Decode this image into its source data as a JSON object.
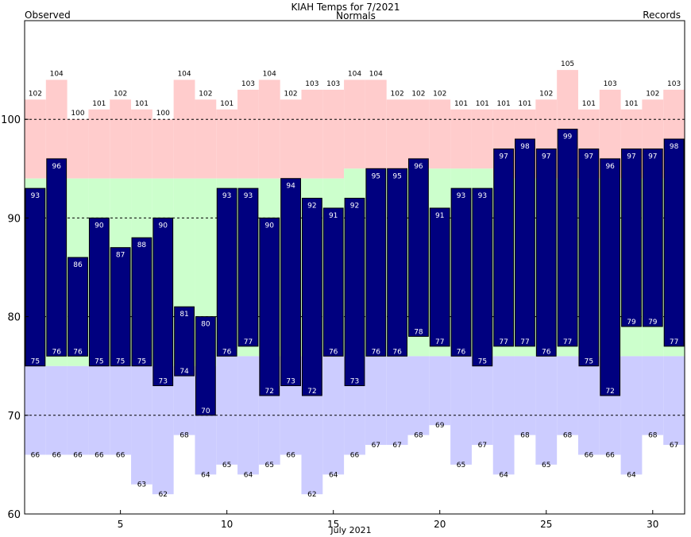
{
  "chart_data": {
    "type": "bar",
    "title": "KIAH Temps for 7/2021",
    "legend": [
      {
        "name": "Observed",
        "color": "#00007f"
      },
      {
        "name": "Normals",
        "color": "#007f00"
      },
      {
        "name": "Records",
        "color": "#bf7fbf"
      }
    ],
    "xlabel": "July 2021",
    "ylabel": "",
    "xlim": [
      0.5,
      31.5
    ],
    "ylim": [
      60,
      110
    ],
    "x_ticks": [
      5,
      10,
      15,
      20,
      25,
      30
    ],
    "y_ticks": [
      60,
      70,
      80,
      90,
      100
    ],
    "dashed_gridlines": [
      70,
      80,
      90,
      100
    ],
    "days": [
      1,
      2,
      3,
      4,
      5,
      6,
      7,
      8,
      9,
      10,
      11,
      12,
      13,
      14,
      15,
      16,
      17,
      18,
      19,
      20,
      21,
      22,
      23,
      24,
      25,
      26,
      27,
      28,
      29,
      30,
      31
    ],
    "series": [
      {
        "name": "Observed",
        "high": [
          93,
          96,
          86,
          90,
          87,
          88,
          90,
          81,
          80,
          93,
          93,
          90,
          94,
          92,
          91,
          92,
          95,
          95,
          96,
          91,
          93,
          93,
          97,
          98,
          97,
          99,
          97,
          96,
          97,
          97,
          98
        ],
        "low": [
          75,
          76,
          76,
          75,
          75,
          75,
          73,
          74,
          70,
          76,
          77,
          72,
          73,
          72,
          76,
          73,
          76,
          76,
          78,
          77,
          76,
          75,
          77,
          77,
          76,
          77,
          75,
          72,
          79,
          79,
          77
        ]
      },
      {
        "name": "Normals",
        "high": [
          94,
          94,
          94,
          94,
          94,
          94,
          94,
          94,
          94,
          94,
          94,
          94,
          94,
          94,
          94,
          95,
          95,
          95,
          95,
          95,
          95,
          95,
          94,
          94,
          94,
          94,
          94,
          94,
          94,
          94,
          94
        ],
        "low": [
          75,
          75,
          75,
          75,
          75,
          75,
          75,
          75,
          75,
          76,
          76,
          76,
          76,
          76,
          76,
          76,
          76,
          76,
          76,
          76,
          76,
          76,
          76,
          76,
          76,
          76,
          76,
          76,
          76,
          76,
          76
        ]
      },
      {
        "name": "Records",
        "high": [
          102,
          104,
          100,
          101,
          102,
          101,
          100,
          104,
          102,
          101,
          103,
          104,
          102,
          103,
          103,
          104,
          104,
          102,
          102,
          102,
          101,
          101,
          101,
          101,
          102,
          105,
          101,
          103,
          101,
          102,
          103
        ],
        "low": [
          66,
          66,
          66,
          66,
          66,
          63,
          62,
          68,
          64,
          65,
          64,
          65,
          66,
          62,
          64,
          66,
          67,
          67,
          68,
          69,
          65,
          67,
          64,
          68,
          65,
          68,
          66,
          66,
          64,
          68,
          67
        ]
      }
    ]
  }
}
